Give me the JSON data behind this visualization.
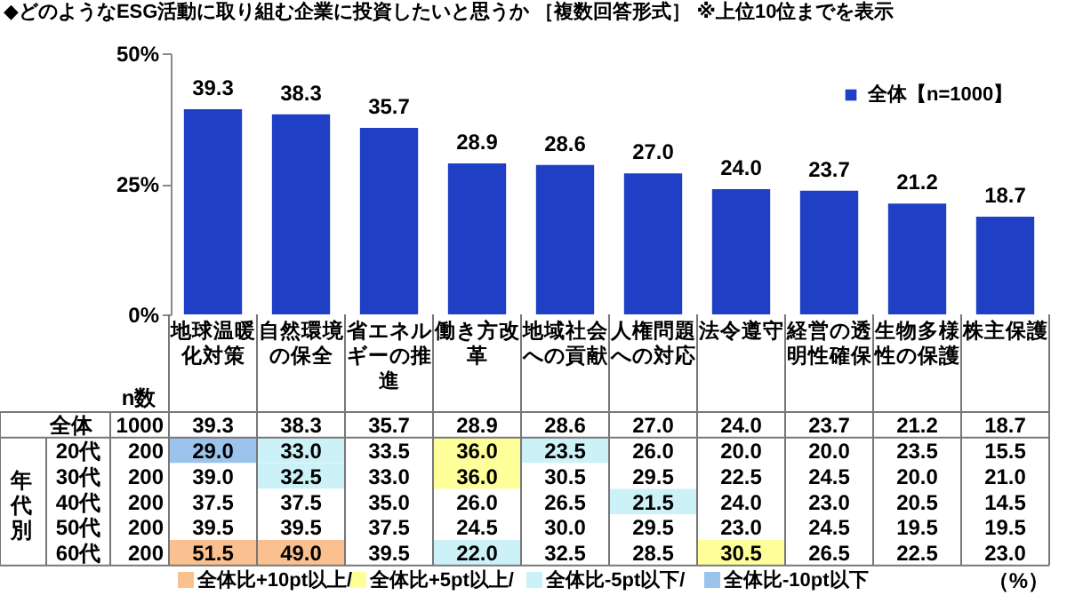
{
  "chart_data": [
    {
      "type": "bar",
      "title": "◆どのようなESG活動に取り組む企業に投資したいと思うか ［複数回答形式］ ※上位10位までを表示",
      "categories": [
        "地球温暖化対策",
        "自然環境の保全",
        "省エネルギーの推進",
        "働き方改革",
        "地域社会への貢献",
        "人権問題への対応",
        "法令遵守",
        "経営の透明性確保",
        "生物多様性の保護",
        "株主保護"
      ],
      "series": [
        {
          "name": "全体【n=1000】",
          "color": "#1f3fc4",
          "values": [
            39.3,
            38.3,
            35.7,
            28.9,
            28.6,
            27.0,
            24.0,
            23.7,
            21.2,
            18.7
          ],
          "value_labels": [
            "39.3",
            "38.3",
            "35.7",
            "28.9",
            "28.6",
            "27.0",
            "24.0",
            "23.7",
            "21.2",
            "18.7"
          ]
        }
      ],
      "ylim": [
        0,
        50
      ],
      "yticks": [
        {
          "value": 0,
          "label": "0%"
        },
        {
          "value": 25,
          "label": "25%"
        },
        {
          "value": 50,
          "label": "50%"
        }
      ],
      "tick_labels": "y",
      "legend": "top right"
    },
    {
      "type": "heatmap",
      "categories": [
        "地球温暖化対策",
        "自然環境の保全",
        "省エネルギーの推進",
        "働き方改革",
        "地域社会への貢献",
        "人権問題への対応",
        "法令遵守",
        "経営の透明性確保",
        "生物多様性の保護",
        "株主保護"
      ],
      "y_categories": [
        "全体",
        "20代",
        "30代",
        "40代",
        "50代",
        "60代"
      ],
      "y2_categories": [
        "1000",
        "200",
        "200",
        "200",
        "200",
        "200"
      ],
      "y2label": "n数",
      "cells": [
        [
          39.3,
          38.3,
          35.7,
          28.9,
          28.6,
          27.0,
          24.0,
          23.7,
          21.2,
          18.7
        ],
        [
          29.0,
          33.0,
          33.5,
          36.0,
          23.5,
          26.0,
          20.0,
          20.0,
          23.5,
          15.5
        ],
        [
          39.0,
          32.5,
          33.0,
          36.0,
          30.5,
          29.5,
          22.5,
          24.5,
          20.0,
          21.0
        ],
        [
          37.5,
          37.5,
          35.0,
          26.0,
          26.5,
          21.5,
          24.0,
          23.0,
          20.5,
          14.5
        ],
        [
          39.5,
          39.5,
          37.5,
          24.5,
          30.0,
          29.5,
          23.0,
          24.5,
          19.5,
          19.5
        ],
        [
          51.5,
          49.0,
          39.5,
          22.0,
          32.5,
          28.5,
          30.5,
          26.5,
          22.5,
          23.0
        ]
      ],
      "cell_labels": [
        [
          "39.3",
          "38.3",
          "35.7",
          "28.9",
          "28.6",
          "27.0",
          "24.0",
          "23.7",
          "21.2",
          "18.7"
        ],
        [
          "29.0",
          "33.0",
          "33.5",
          "36.0",
          "23.5",
          "26.0",
          "20.0",
          "20.0",
          "23.5",
          "15.5"
        ],
        [
          "39.0",
          "32.5",
          "33.0",
          "36.0",
          "30.5",
          "29.5",
          "22.5",
          "24.5",
          "20.0",
          "21.0"
        ],
        [
          "37.5",
          "37.5",
          "35.0",
          "26.0",
          "26.5",
          "21.5",
          "24.0",
          "23.0",
          "20.5",
          "14.5"
        ],
        [
          "39.5",
          "39.5",
          "37.5",
          "24.5",
          "30.0",
          "29.5",
          "23.0",
          "24.5",
          "19.5",
          "19.5"
        ],
        [
          "51.5",
          "49.0",
          "39.5",
          "22.0",
          "32.5",
          "28.5",
          "30.5",
          "26.5",
          "22.5",
          "23.0"
        ]
      ],
      "colors": [
        [
          null,
          null,
          null,
          null,
          null,
          null,
          null,
          null,
          null,
          null
        ],
        [
          "#9cc3eb",
          "#ccf2f8",
          null,
          "#ffff99",
          "#ccf2f8",
          null,
          null,
          null,
          null,
          null
        ],
        [
          null,
          "#ccf2f8",
          null,
          "#ffff99",
          null,
          null,
          null,
          null,
          null,
          null
        ],
        [
          null,
          null,
          null,
          null,
          null,
          "#ccf2f8",
          null,
          null,
          null,
          null
        ],
        [
          null,
          null,
          null,
          null,
          null,
          null,
          null,
          null,
          null,
          null
        ],
        [
          "#fac090",
          "#fac090",
          null,
          "#ccf2f8",
          null,
          null,
          "#ffff99",
          null,
          null,
          null
        ]
      ],
      "annotations": [
        "年代別",
        "全体比+10pt以上/",
        "全体比+5pt以上/",
        "全体比-5pt以下/",
        "全体比-10pt以下",
        "（%）"
      ]
    }
  ]
}
